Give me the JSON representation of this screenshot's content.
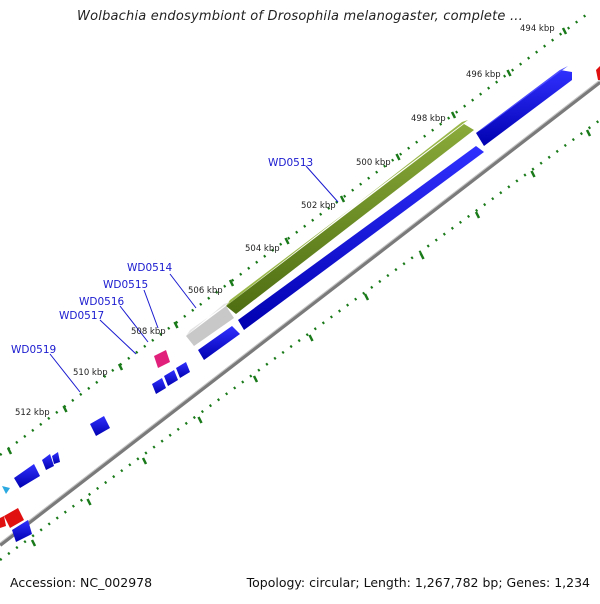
{
  "title": "Wolbachia endosymbiont of Drosophila melanogaster, complete ...",
  "footer": {
    "accession": "Accession: NC_002978",
    "summary": "Topology: circular; Length: 1,267,782 bp; Genes: 1,234"
  },
  "ruler": {
    "ticks": [
      {
        "label": "494 kbp"
      },
      {
        "label": "496 kbp"
      },
      {
        "label": "498 kbp"
      },
      {
        "label": "500 kbp"
      },
      {
        "label": "502 kbp"
      },
      {
        "label": "504 kbp"
      },
      {
        "label": "506 kbp"
      },
      {
        "label": "508 kbp"
      },
      {
        "label": "510 kbp"
      },
      {
        "label": "512 kbp"
      }
    ]
  },
  "gene_labels": [
    {
      "name": "WD0513"
    },
    {
      "name": "WD0514"
    },
    {
      "name": "WD0515"
    },
    {
      "name": "WD0516"
    },
    {
      "name": "WD0517"
    },
    {
      "name": "WD0519"
    }
  ],
  "colors": {
    "gene_blue": "#0a0ae6",
    "gene_green": "#6b8c1f",
    "gene_grey": "#c8c8c8",
    "gene_pink": "#e0207a",
    "gene_red": "#e01010",
    "gene_cyan": "#2aa8e0",
    "tick_green": "#1a7a1a",
    "backbone": "#7a7a7a",
    "label_blue": "#1a1ad0"
  }
}
